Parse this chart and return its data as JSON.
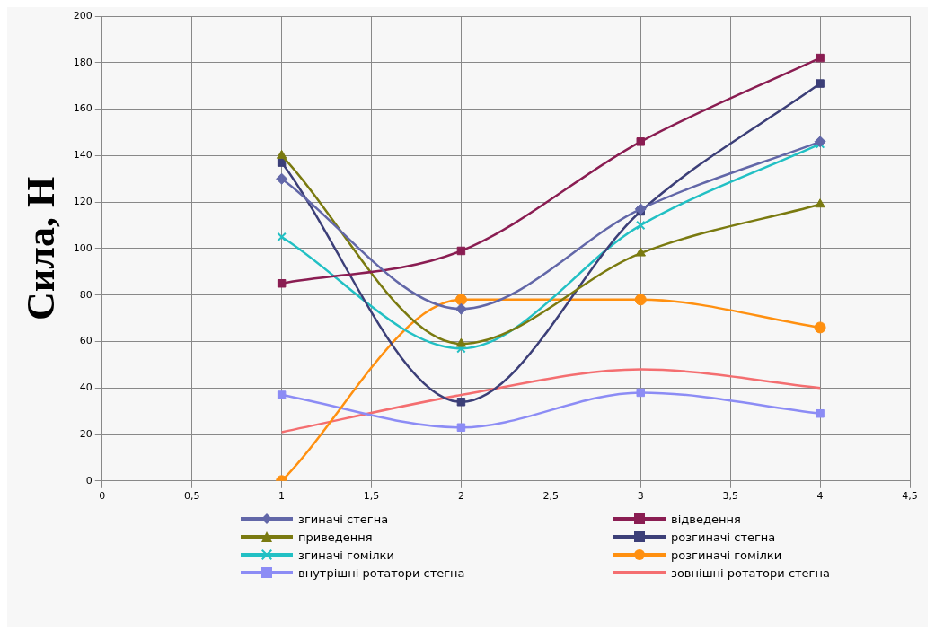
{
  "chart_data": {
    "type": "line",
    "ylabel": "Сила, Н",
    "x": [
      1,
      2,
      3,
      4
    ],
    "xlim": [
      0,
      4.5
    ],
    "xticks": [
      0,
      {
        "value": 0.5,
        "label": "0,5"
      },
      1,
      {
        "value": 1.5,
        "label": "1,5"
      },
      2,
      {
        "value": 2.5,
        "label": "2,5"
      },
      3,
      {
        "value": 3.5,
        "label": "3,5"
      },
      4,
      {
        "value": 4.5,
        "label": "4,5"
      }
    ],
    "ylim": [
      0,
      200
    ],
    "yticks": [
      0,
      20,
      40,
      60,
      80,
      100,
      120,
      140,
      160,
      180,
      200
    ],
    "grid": true,
    "legend": "bottom",
    "series": [
      {
        "name": "згиначі стегна",
        "color": "#6267a8",
        "marker": "diamond",
        "values": [
          130,
          74,
          117,
          146
        ]
      },
      {
        "name": "відведення",
        "color": "#8a1d52",
        "marker": "square",
        "values": [
          85,
          99,
          146,
          182
        ]
      },
      {
        "name": "приведення",
        "color": "#7a7a10",
        "marker": "triangle",
        "values": [
          140,
          59,
          98,
          119
        ]
      },
      {
        "name": "розгиначі стегна",
        "color": "#3c3f78",
        "marker": "square",
        "values": [
          137,
          34,
          116,
          171
        ]
      },
      {
        "name": "згиначі гомілки",
        "color": "#22c0c4",
        "marker": "cross",
        "values": [
          105,
          57,
          110,
          145
        ]
      },
      {
        "name": "розгиначі гомілки",
        "color": "#ff9010",
        "marker": "circle",
        "values": [
          0,
          78,
          78,
          66
        ]
      },
      {
        "name": "внутрішні ротатори стегна",
        "color": "#8c8cf5",
        "marker": "square",
        "values": [
          37,
          23,
          38,
          29
        ]
      },
      {
        "name": "зовнішні ротатори стегна",
        "color": "#f46e70",
        "marker": "none",
        "values": [
          21,
          37,
          48,
          40
        ]
      }
    ]
  }
}
